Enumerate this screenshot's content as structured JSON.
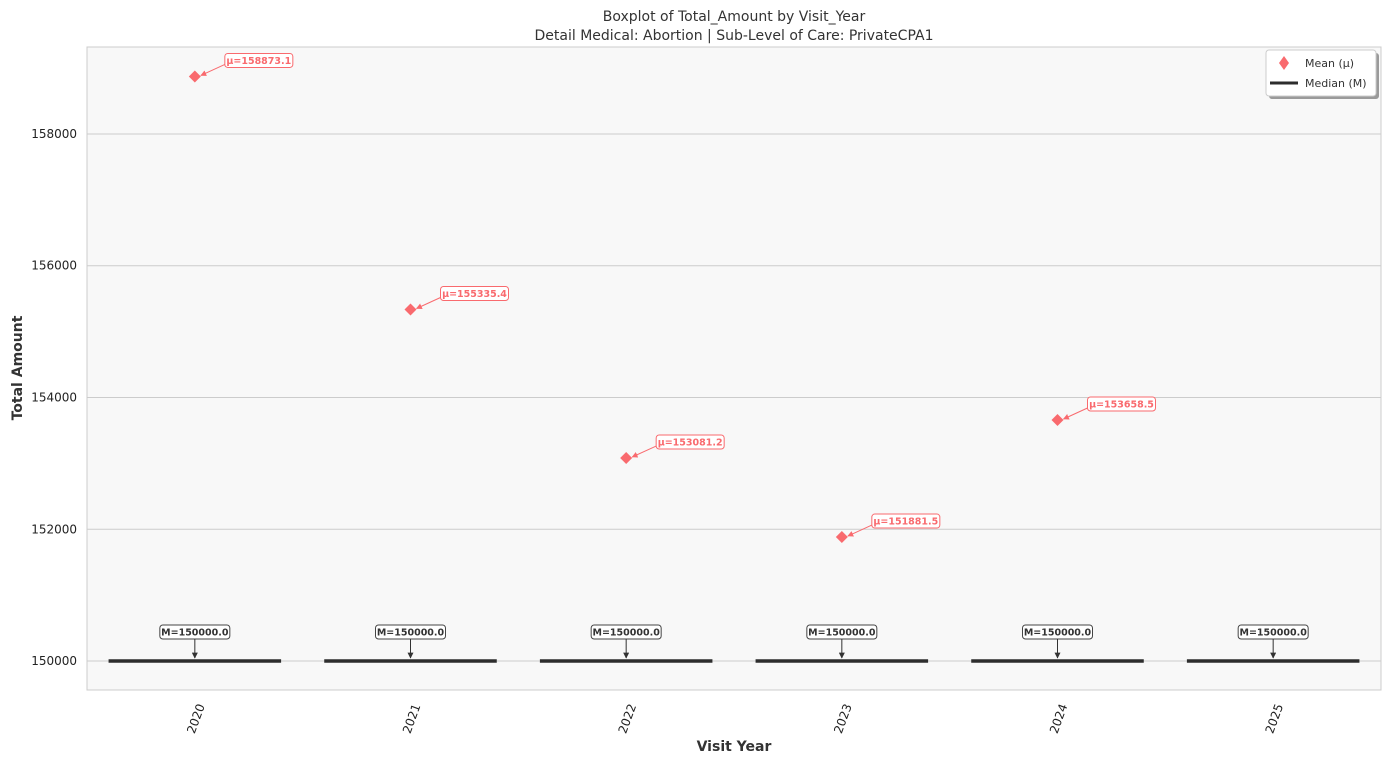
{
  "chart_data": {
    "type": "boxplot",
    "title": "Boxplot of Total_Amount by Visit_Year",
    "subtitle": "Detail Medical: Abortion | Sub-Level of Care: PrivateCPA1",
    "xlabel": "Visit Year",
    "ylabel": "Total Amount",
    "ylim": [
      149560,
      159320
    ],
    "yticks": [
      150000,
      152000,
      154000,
      156000,
      158000
    ],
    "grid": true,
    "legend_position": "top-right",
    "legend": [
      {
        "label": "Mean (μ)",
        "marker": "diamond"
      },
      {
        "label": "Median (M)",
        "marker": "line"
      }
    ],
    "categories": [
      "2020",
      "2021",
      "2022",
      "2023",
      "2024",
      "2025"
    ],
    "medians": [
      150000,
      150000,
      150000,
      150000,
      150000,
      150000
    ],
    "median_labels": [
      "M=150000.0",
      "M=150000.0",
      "M=150000.0",
      "M=150000.0",
      "M=150000.0",
      "M=150000.0"
    ],
    "means": [
      158873.1,
      155335.4,
      153081.2,
      151881.5,
      153658.5,
      null
    ],
    "mean_labels": [
      "μ=158873.1",
      "μ=155335.4",
      "μ=153081.2",
      "μ=151881.5",
      "μ=153658.5",
      ""
    ],
    "colors": {
      "mean": "#f96a6e",
      "median": "#2d2d2d",
      "plot_bg": "#f8f8f8",
      "grid": "#cccccc"
    }
  }
}
